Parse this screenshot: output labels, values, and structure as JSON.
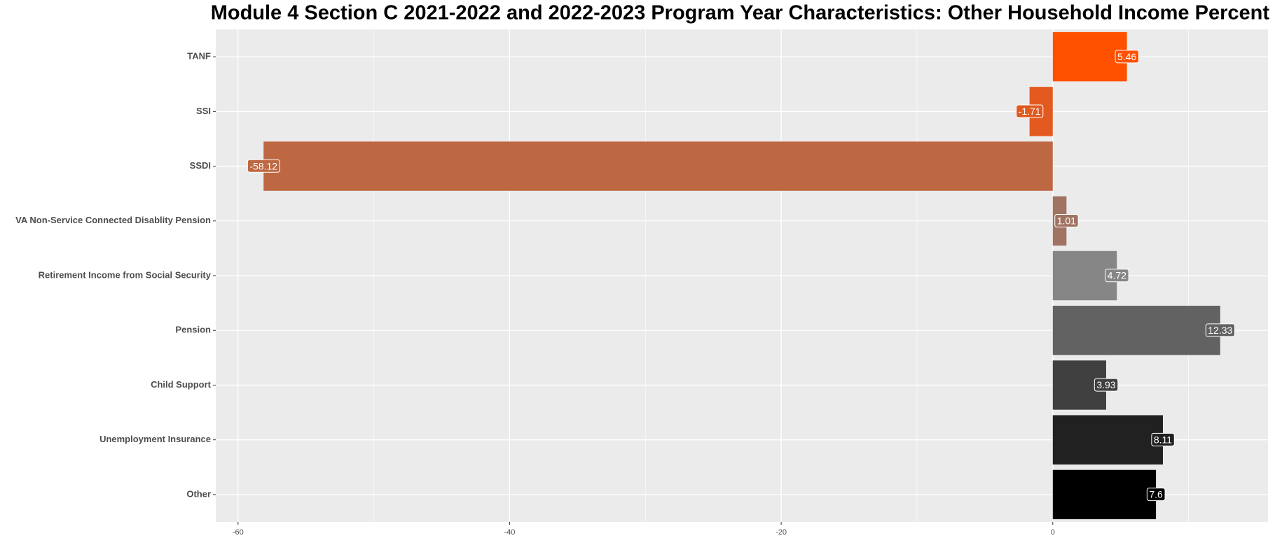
{
  "chart_data": {
    "type": "barh",
    "title": "Module 4 Section C 2021-2022 and 2022-2023 Program Year Characteristics: Other Household Income Percent",
    "categories": [
      "TANF",
      "SSI",
      "SSDI",
      "VA Non-Service Connected Disablity Pension",
      "Retirement Income from Social Security",
      "Pension",
      "Child Support",
      "Unemployment Insurance",
      "Other"
    ],
    "values": [
      5.46,
      -1.71,
      -58.12,
      1.01,
      4.72,
      12.33,
      3.93,
      8.11,
      7.6
    ],
    "colors": [
      "#ff5000",
      "#e25a1f",
      "#bd6842",
      "#a07363",
      "#868686",
      "#626262",
      "#404040",
      "#212121",
      "#000000"
    ],
    "xlim": [
      -61.64,
      15.85
    ],
    "xticks": [
      -60,
      -40,
      -20,
      0
    ],
    "minor_xticks": [
      -50,
      -30,
      -10,
      10
    ],
    "grid": true
  }
}
